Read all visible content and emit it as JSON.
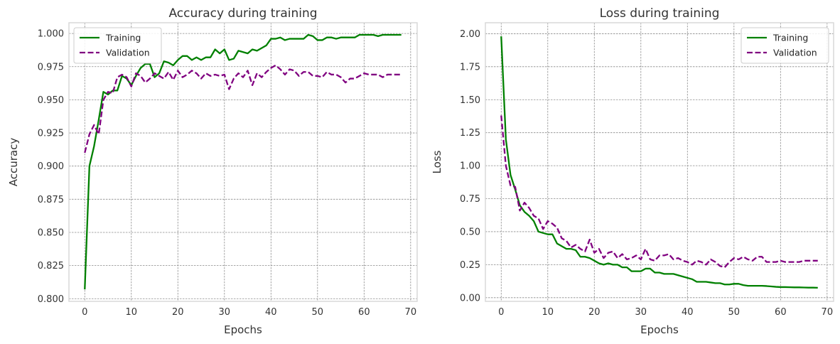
{
  "chart_data": [
    {
      "type": "line",
      "title": "Accuracy during training",
      "xlabel": "Epochs",
      "ylabel": "Accuracy",
      "xlim": [
        -3.4,
        71.4
      ],
      "ylim": [
        0.798,
        1.0081
      ],
      "xticks": [
        0,
        10,
        20,
        30,
        40,
        50,
        60,
        70
      ],
      "yticks": [
        0.8,
        0.825,
        0.85,
        0.875,
        0.9,
        0.925,
        0.95,
        0.975,
        1.0
      ],
      "ytick_labels": [
        "0.800",
        "0.825",
        "0.850",
        "0.875",
        "0.900",
        "0.925",
        "0.950",
        "0.975",
        "1.000"
      ],
      "grid": true,
      "legend_position": "top-left",
      "series": [
        {
          "name": "Training",
          "color": "#008000",
          "style": "solid",
          "values": [
            0.807,
            0.9,
            0.915,
            0.935,
            0.956,
            0.954,
            0.957,
            0.957,
            0.968,
            0.966,
            0.961,
            0.968,
            0.974,
            0.977,
            0.977,
            0.967,
            0.97,
            0.979,
            0.978,
            0.976,
            0.98,
            0.983,
            0.983,
            0.98,
            0.982,
            0.98,
            0.982,
            0.982,
            0.988,
            0.985,
            0.988,
            0.98,
            0.981,
            0.987,
            0.986,
            0.985,
            0.988,
            0.987,
            0.989,
            0.991,
            0.996,
            0.996,
            0.997,
            0.995,
            0.996,
            0.996,
            0.996,
            0.996,
            0.999,
            0.998,
            0.995,
            0.995,
            0.997,
            0.997,
            0.996,
            0.997,
            0.997,
            0.997,
            0.997,
            0.999,
            0.999,
            0.999,
            0.999,
            0.998,
            0.999,
            0.999,
            0.999,
            0.999,
            0.999
          ]
        },
        {
          "name": "Validation",
          "color": "#800080",
          "style": "dashed",
          "values": [
            0.91,
            0.924,
            0.931,
            0.924,
            0.95,
            0.956,
            0.955,
            0.967,
            0.969,
            0.967,
            0.96,
            0.97,
            0.968,
            0.963,
            0.966,
            0.97,
            0.968,
            0.966,
            0.971,
            0.965,
            0.972,
            0.967,
            0.969,
            0.972,
            0.97,
            0.966,
            0.97,
            0.968,
            0.969,
            0.968,
            0.969,
            0.958,
            0.966,
            0.97,
            0.967,
            0.972,
            0.961,
            0.97,
            0.967,
            0.971,
            0.974,
            0.976,
            0.973,
            0.969,
            0.973,
            0.972,
            0.968,
            0.971,
            0.971,
            0.968,
            0.968,
            0.967,
            0.971,
            0.969,
            0.969,
            0.967,
            0.963,
            0.966,
            0.966,
            0.968,
            0.97,
            0.969,
            0.969,
            0.969,
            0.967,
            0.969,
            0.969,
            0.969,
            0.969
          ]
        }
      ]
    },
    {
      "type": "line",
      "title": "Loss during training",
      "xlabel": "Epochs",
      "ylabel": "Loss",
      "xlim": [
        -3.4,
        71.4
      ],
      "ylim": [
        -0.028,
        2.083
      ],
      "xticks": [
        0,
        10,
        20,
        30,
        40,
        50,
        60,
        70
      ],
      "yticks": [
        0.0,
        0.25,
        0.5,
        0.75,
        1.0,
        1.25,
        1.5,
        1.75,
        2.0
      ],
      "ytick_labels": [
        "0.00",
        "0.25",
        "0.50",
        "0.75",
        "1.00",
        "1.25",
        "1.50",
        "1.75",
        "2.00"
      ],
      "grid": true,
      "legend_position": "top-right",
      "series": [
        {
          "name": "Training",
          "color": "#008000",
          "style": "solid",
          "values": [
            1.98,
            1.2,
            0.93,
            0.82,
            0.7,
            0.65,
            0.62,
            0.58,
            0.5,
            0.49,
            0.48,
            0.48,
            0.41,
            0.39,
            0.37,
            0.37,
            0.36,
            0.31,
            0.31,
            0.3,
            0.28,
            0.26,
            0.25,
            0.26,
            0.25,
            0.25,
            0.23,
            0.23,
            0.2,
            0.2,
            0.2,
            0.22,
            0.22,
            0.19,
            0.19,
            0.18,
            0.18,
            0.18,
            0.17,
            0.16,
            0.15,
            0.14,
            0.12,
            0.12,
            0.12,
            0.115,
            0.11,
            0.11,
            0.1,
            0.1,
            0.105,
            0.105,
            0.095,
            0.09,
            0.09,
            0.09,
            0.09,
            0.088,
            0.085,
            0.082,
            0.08,
            0.08,
            0.079,
            0.078,
            0.078,
            0.077,
            0.076,
            0.076,
            0.075
          ]
        },
        {
          "name": "Validation",
          "color": "#800080",
          "style": "dashed",
          "values": [
            1.38,
            1.0,
            0.85,
            0.84,
            0.66,
            0.72,
            0.68,
            0.62,
            0.6,
            0.52,
            0.58,
            0.56,
            0.53,
            0.45,
            0.43,
            0.38,
            0.4,
            0.37,
            0.35,
            0.44,
            0.34,
            0.37,
            0.3,
            0.34,
            0.35,
            0.3,
            0.33,
            0.29,
            0.3,
            0.32,
            0.29,
            0.37,
            0.29,
            0.28,
            0.32,
            0.32,
            0.33,
            0.29,
            0.3,
            0.28,
            0.27,
            0.25,
            0.28,
            0.27,
            0.25,
            0.29,
            0.27,
            0.24,
            0.23,
            0.27,
            0.3,
            0.29,
            0.31,
            0.29,
            0.28,
            0.31,
            0.31,
            0.27,
            0.27,
            0.27,
            0.28,
            0.27,
            0.27,
            0.27,
            0.27,
            0.28,
            0.28,
            0.28,
            0.28
          ]
        }
      ]
    }
  ],
  "style": {
    "grid_color": "#8c8c8c",
    "frame_color": "#d9d9d9",
    "background": "#ffffff"
  }
}
